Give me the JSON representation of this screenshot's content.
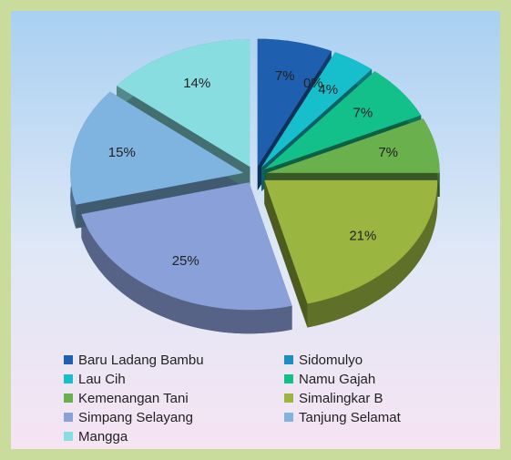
{
  "chart_data": {
    "type": "pie",
    "categories": [
      "Baru Ladang Bambu",
      "Sidomulyo",
      "Lau Cih",
      "Namu Gajah",
      "Kemenangan Tani",
      "Simalingkar B",
      "Simpang Selayang",
      "Tanjung Selamat",
      "Mangga"
    ],
    "values": [
      7,
      0,
      4,
      7,
      7,
      21,
      25,
      15,
      14
    ],
    "value_labels": [
      "7%",
      "0%",
      "4%",
      "7%",
      "7%",
      "21%",
      "25%",
      "15%",
      "14%"
    ],
    "colors": [
      "#1f5fb0",
      "#1a8fc0",
      "#17bfcc",
      "#14c08a",
      "#6ab04c",
      "#9ab540",
      "#8aa0d8",
      "#7fb3e0",
      "#88dde0"
    ],
    "legend": "bottom"
  }
}
